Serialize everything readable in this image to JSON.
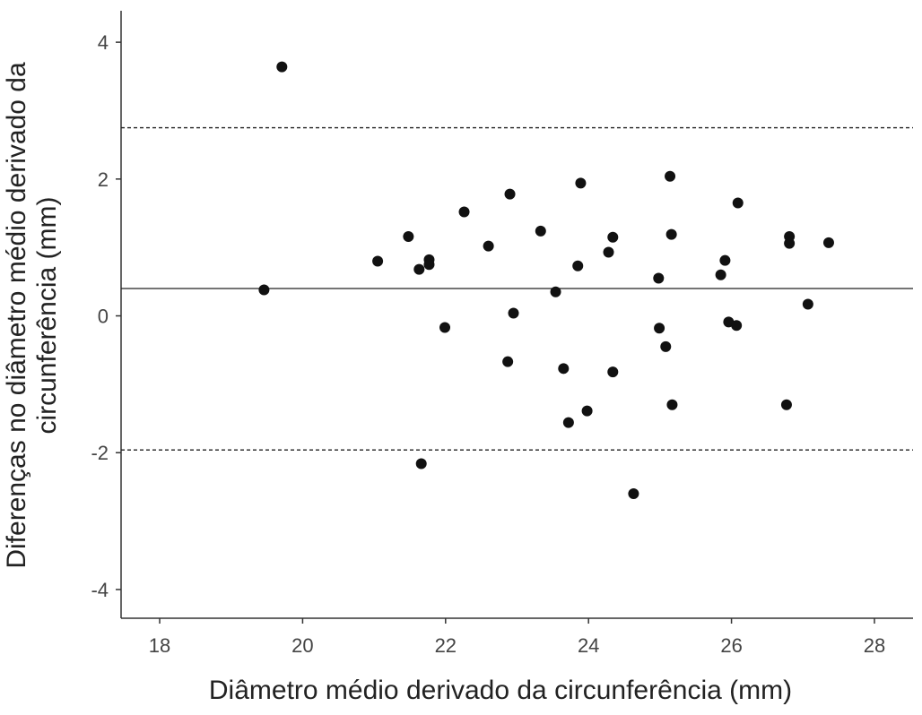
{
  "chart_data": {
    "type": "scatter",
    "x_label": "Diâmetro médio derivado da circunferência (mm)",
    "y_label": [
      "Diferenças no diâmetro médio derivado da",
      "circunferência (mm)"
    ],
    "xlim": [
      17.46,
      28.54
    ],
    "xticks": [
      18,
      20,
      22,
      24,
      26,
      28
    ],
    "ylim": [
      -4.42,
      4.46
    ],
    "yticks": [
      -4,
      -2,
      0,
      2,
      4
    ],
    "color": "#111111",
    "reference_lines": [
      {
        "value": 0.4,
        "style": "solid"
      },
      {
        "value": 2.75,
        "style": "dashed"
      },
      {
        "value": -1.96,
        "style": "dashed"
      }
    ],
    "x": [
      19.71,
      19.46,
      21.05,
      21.48,
      21.63,
      21.77,
      21.77,
      21.99,
      21.66,
      22.26,
      22.6,
      22.9,
      22.95,
      22.87,
      23.33,
      23.54,
      23.65,
      23.72,
      23.89,
      23.85,
      23.98,
      24.34,
      24.28,
      24.34,
      24.63,
      24.98,
      24.99,
      25.08,
      25.14,
      25.16,
      25.17,
      25.85,
      25.91,
      25.96,
      26.07,
      26.09,
      26.77,
      26.81,
      26.81,
      27.07,
      27.36
    ],
    "values": [
      3.64,
      0.38,
      0.8,
      1.16,
      0.68,
      0.82,
      0.75,
      -0.17,
      -2.16,
      1.52,
      1.02,
      1.78,
      0.04,
      -0.67,
      1.24,
      0.35,
      -0.77,
      -1.56,
      1.94,
      0.73,
      -1.39,
      1.15,
      0.93,
      -0.82,
      -2.6,
      0.55,
      -0.18,
      -0.45,
      2.04,
      1.19,
      -1.3,
      0.6,
      0.81,
      -0.09,
      -0.14,
      1.65,
      -1.3,
      1.16,
      1.06,
      0.17,
      1.07
    ]
  }
}
